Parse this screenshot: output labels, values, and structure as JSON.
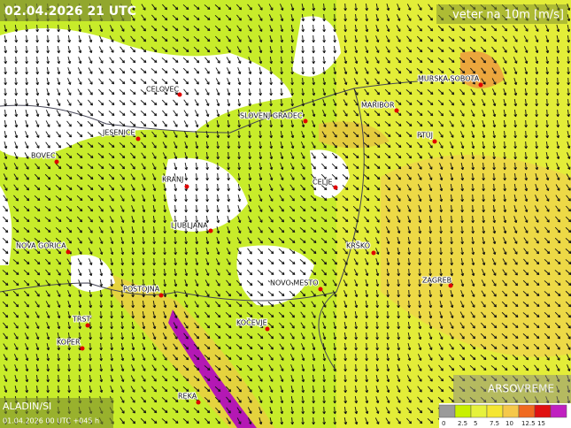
{
  "header": {
    "title": "02.04.2026 21 UTC",
    "parameter": "veter na 10m [m/s]"
  },
  "cities": [
    "CELOVEC",
    "SLOVENJ GRADEC",
    "MARIBOR",
    "MURSKA SOBOTA",
    "JESENICE",
    "PTUJ",
    "BOVEC",
    "KRANJ",
    "CELJE",
    "LJUBLJANA",
    "NOVA GORICA",
    "KRŠKO",
    "ZAGREB",
    "NOVO MESTO",
    "POSTOJNA",
    "TRST",
    "KOČEVJE",
    "KOPER",
    "REKA"
  ],
  "footer": {
    "model": "ALADIN/SI",
    "run": "01.04.2026 00 UTC +045 h",
    "logo_a": "ARSO",
    "logo_b": "VREME"
  },
  "legend": [
    {
      "label": "0",
      "color": "#9a9a9a"
    },
    {
      "label": "2.5",
      "color": "#c8f000"
    },
    {
      "label": "5",
      "color": "#e6f23c"
    },
    {
      "label": "7.5",
      "color": "#f5e632"
    },
    {
      "label": "10",
      "color": "#f5c84a"
    },
    {
      "label": "12.5",
      "color": "#f06a20"
    },
    {
      "label": "15",
      "color": "#e01010"
    },
    {
      "label": "",
      "color": "#c020c0"
    }
  ]
}
